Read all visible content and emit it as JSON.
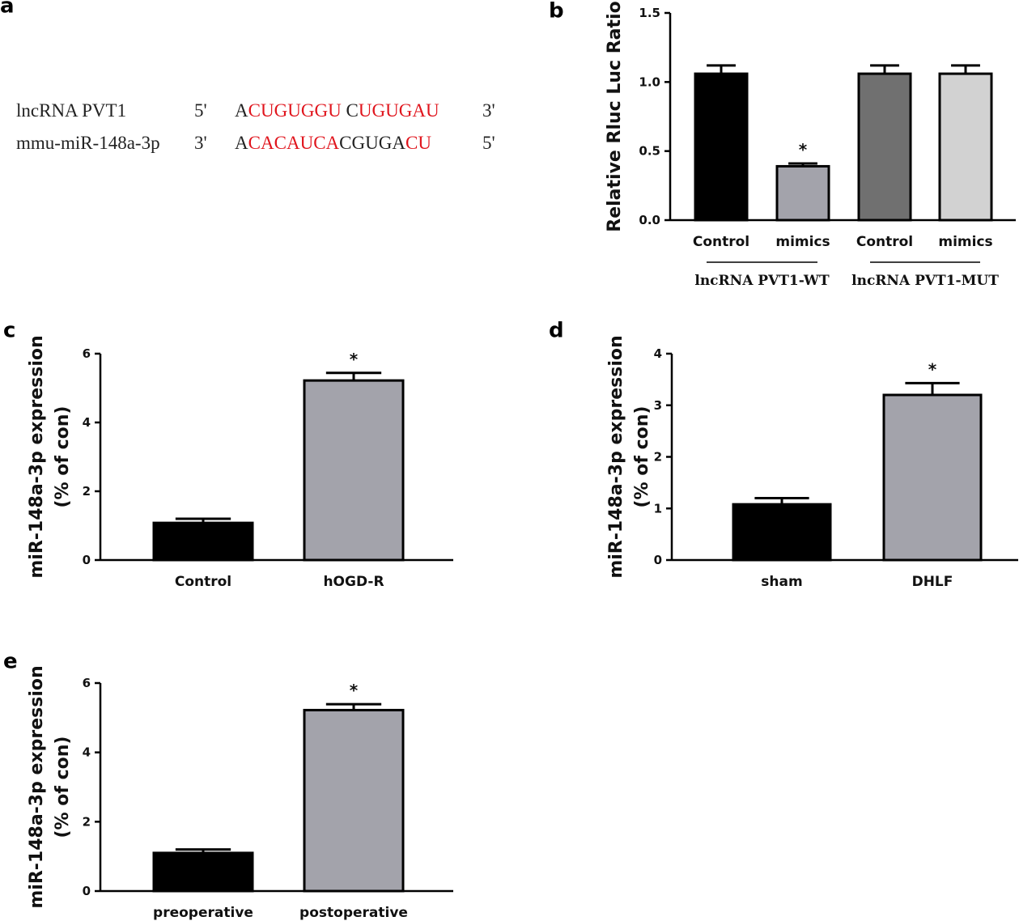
{
  "panels": {
    "a": {
      "label": "a"
    },
    "b": {
      "label": "b"
    },
    "c": {
      "label": "c"
    },
    "d": {
      "label": "d"
    },
    "e": {
      "label": "e"
    }
  },
  "sequences": {
    "row1": {
      "name": "lncRNA PVT1",
      "end5": "5'",
      "end3": "3'",
      "seq": "ACUGUGGU CUGUGAU",
      "red": [
        1,
        2,
        3,
        4,
        5,
        6,
        7,
        10,
        11,
        12,
        13,
        14,
        15
      ]
    },
    "row2": {
      "name": "mmu-miR-148a-3p",
      "end5": "5'",
      "end3": "3'",
      "seq": "ACACAUCACGUGACU",
      "red": [
        1,
        2,
        3,
        4,
        5,
        6,
        7,
        13,
        14
      ]
    }
  },
  "chart_data": [
    {
      "id": "b",
      "type": "bar",
      "ylabel": "Relative Rluc Luc Ratio",
      "ylim": [
        0,
        1.5
      ],
      "yticks": [
        0.0,
        0.5,
        1.0,
        1.5
      ],
      "ytick_labels": [
        "0.0",
        "0.5",
        "1.0",
        "1.5"
      ],
      "categories": [
        "Control",
        "mimics",
        "Control",
        "mimics"
      ],
      "values": [
        1.06,
        0.39,
        1.06,
        1.06
      ],
      "errors": [
        0.06,
        0.02,
        0.06,
        0.06
      ],
      "colors": [
        "#000000",
        "#a3a3ab",
        "#707070",
        "#d2d2d2"
      ],
      "significance": [
        "",
        "*",
        "",
        ""
      ],
      "groups": [
        {
          "label": "lncRNA PVT1-WT",
          "from": 0,
          "to": 1
        },
        {
          "label": "lncRNA PVT1-MUT",
          "from": 2,
          "to": 3
        }
      ]
    },
    {
      "id": "c",
      "type": "bar",
      "ylabel": "miR-148a-3p expression",
      "ylabel2": "(% of con)",
      "ylim": [
        0,
        6
      ],
      "yticks": [
        0,
        2,
        4,
        6
      ],
      "ytick_labels": [
        "0",
        "2",
        "4",
        "6"
      ],
      "categories": [
        "Control",
        "hOGD-R"
      ],
      "values": [
        1.08,
        5.22
      ],
      "errors": [
        0.12,
        0.22
      ],
      "colors": [
        "#000000",
        "#a3a3ab"
      ],
      "significance": [
        "",
        "*"
      ]
    },
    {
      "id": "d",
      "type": "bar",
      "ylabel": "miR-148a-3p expression",
      "ylabel2": "(% of con)",
      "ylim": [
        0,
        4
      ],
      "yticks": [
        0,
        1,
        2,
        3,
        4
      ],
      "ytick_labels": [
        "0",
        "1",
        "2",
        "3",
        "4"
      ],
      "categories": [
        "sham",
        "DHLF"
      ],
      "values": [
        1.08,
        3.2
      ],
      "errors": [
        0.12,
        0.23
      ],
      "colors": [
        "#000000",
        "#a3a3ab"
      ],
      "significance": [
        "",
        "*"
      ]
    },
    {
      "id": "e",
      "type": "bar",
      "ylabel": "miR-148a-3p expression",
      "ylabel2": "(% of con)",
      "ylim": [
        0,
        6
      ],
      "yticks": [
        0,
        2,
        4,
        6
      ],
      "ytick_labels": [
        "0",
        "2",
        "4",
        "6"
      ],
      "categories": [
        "preoperative",
        "postoperative"
      ],
      "values": [
        1.1,
        5.22
      ],
      "errors": [
        0.1,
        0.17
      ],
      "colors": [
        "#000000",
        "#a3a3ab"
      ],
      "significance": [
        "",
        "*"
      ]
    }
  ]
}
